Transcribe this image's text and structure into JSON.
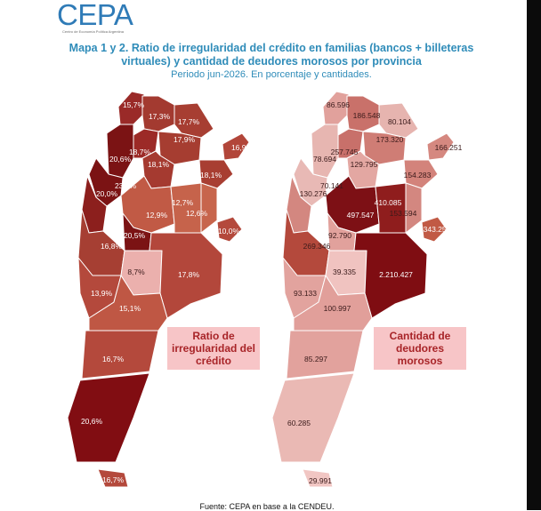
{
  "brand": {
    "name": "CEPA",
    "tagline": "Centro de Economía Política Argentina"
  },
  "header": {
    "title": "Mapa 1 y 2. Ratio de irregularidad del crédito en familias (bancos + billeteras virtuales) y cantidad de deudores morosos por provincia",
    "subtitle": "Periodo jun-2026. En porcentaje y cantidades."
  },
  "map1": {
    "legend": "Ratio de irregularidad del crédito",
    "labels": [
      "15,7%",
      "17,3%",
      "17,7%",
      "17,9%",
      "18,7%",
      "20,6%",
      "18,1%",
      "23,1%",
      "20,0%",
      "18,1%",
      "16,9%",
      "12,7%",
      "12,9%",
      "12,6%",
      "20,5%",
      "10,0%",
      "16,8%",
      "8,7%",
      "17,8%",
      "13,9%",
      "15,1%",
      "16,7%",
      "20,6%",
      "16,7%"
    ]
  },
  "map2": {
    "legend": "Cantidad de deudores morosos",
    "labels": [
      "86.596",
      "186.548",
      "80.104",
      "173.320",
      "257.745",
      "166.251",
      "78.694",
      "129.795",
      "154.283",
      "70.141",
      "130.276",
      "410.085",
      "497.547",
      "153.594",
      "343.254",
      "92.790",
      "269.346",
      "39.335",
      "2.210.427",
      "93.133",
      "100.997",
      "85.297",
      "60.285",
      "29.991"
    ]
  },
  "source": "Fuente: CEPA en base a la CENDEU."
}
